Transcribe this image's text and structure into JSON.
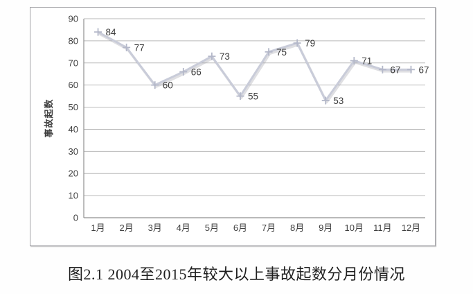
{
  "figure": {
    "caption": "图2.1 2004至2015年较大以上事故起数分月份情况"
  },
  "chart_data": {
    "type": "line",
    "title": "",
    "categories": [
      "1月",
      "2月",
      "3月",
      "4月",
      "5月",
      "6月",
      "7月",
      "8月",
      "9月",
      "10月",
      "11月",
      "12月"
    ],
    "values": [
      84,
      77,
      60,
      66,
      73,
      55,
      75,
      79,
      53,
      71,
      67,
      67
    ],
    "xlabel": "",
    "ylabel": "事故起数",
    "ylim": [
      0,
      90
    ],
    "ytick_step": 10,
    "grid": true,
    "legend": false,
    "marker": "plus",
    "data_labels": true,
    "colors": {
      "line": "#c9ccd9",
      "line_shadow": "rgba(150,150,160,0.30)",
      "marker": "#b4b8c9",
      "grid": "#b9b9b9",
      "axis": "#8f8f8f",
      "tick_text": "#3f3f3f",
      "data_label_text": "#3a3a3a",
      "frame": "#a2a2a6",
      "caption_text": "#1f1f1f"
    }
  }
}
